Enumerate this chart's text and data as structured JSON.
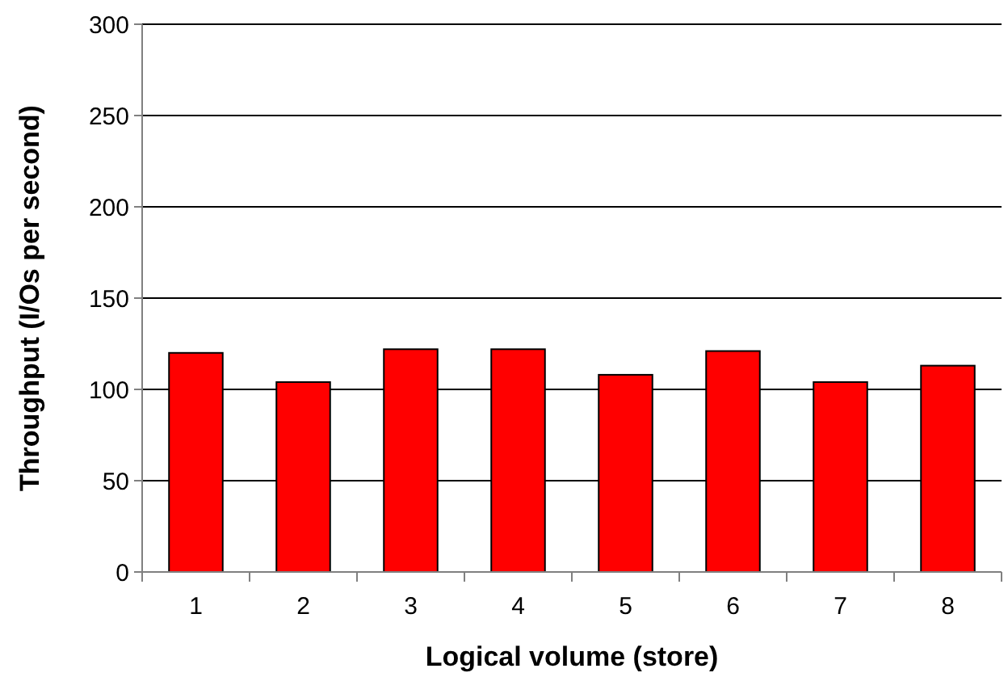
{
  "chart_data": {
    "type": "bar",
    "xlabel": "Logical volume (store)",
    "ylabel": "Throughput (I/Os per second)",
    "categories": [
      "1",
      "2",
      "3",
      "4",
      "5",
      "6",
      "7",
      "8"
    ],
    "values": [
      120,
      104,
      122,
      122,
      108,
      121,
      104,
      113
    ],
    "color": "#ff0000",
    "ylim": [
      0,
      300
    ],
    "yticks": [
      0,
      50,
      100,
      150,
      200,
      250,
      300
    ],
    "grid": "y"
  }
}
